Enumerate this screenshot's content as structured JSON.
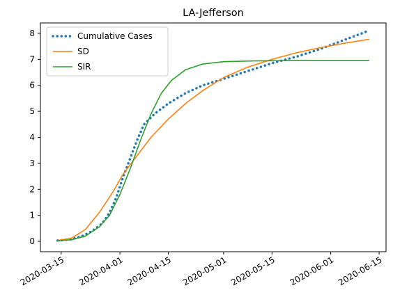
{
  "chart_data": {
    "type": "line",
    "title": "LA-Jefferson",
    "xlabel": "",
    "ylabel": "",
    "x_axis_kind": "date",
    "xlim": [
      "2020-03-09",
      "2020-06-17"
    ],
    "ylim": [
      -0.4,
      8.4
    ],
    "x_ticks": [
      "2020-03-15",
      "2020-04-01",
      "2020-04-15",
      "2020-05-01",
      "2020-05-15",
      "2020-06-01",
      "2020-06-15"
    ],
    "y_ticks": [
      0,
      1,
      2,
      3,
      4,
      5,
      6,
      7,
      8
    ],
    "grid": false,
    "legend_position": "top-left",
    "series": [
      {
        "name": "Cumulative Cases",
        "style": "dotted",
        "color": "#1f77b4",
        "points": [
          [
            "2020-03-14",
            0.03
          ],
          [
            "2020-03-18",
            0.08
          ],
          [
            "2020-03-21",
            0.2
          ],
          [
            "2020-03-24",
            0.4
          ],
          [
            "2020-03-27",
            0.7
          ],
          [
            "2020-03-29",
            1.1
          ],
          [
            "2020-03-31",
            1.7
          ],
          [
            "2020-04-02",
            2.5
          ],
          [
            "2020-04-04",
            3.2
          ],
          [
            "2020-04-06",
            3.9
          ],
          [
            "2020-04-08",
            4.5
          ],
          [
            "2020-04-11",
            4.9
          ],
          [
            "2020-04-15",
            5.3
          ],
          [
            "2020-04-20",
            5.7
          ],
          [
            "2020-04-25",
            6.0
          ],
          [
            "2020-05-01",
            6.25
          ],
          [
            "2020-05-08",
            6.55
          ],
          [
            "2020-05-15",
            6.85
          ],
          [
            "2020-05-22",
            7.1
          ],
          [
            "2020-05-29",
            7.4
          ],
          [
            "2020-06-05",
            7.75
          ],
          [
            "2020-06-12",
            8.1
          ]
        ]
      },
      {
        "name": "SD",
        "style": "solid",
        "color": "#ff7f0e",
        "points": [
          [
            "2020-03-14",
            0.03
          ],
          [
            "2020-03-18",
            0.12
          ],
          [
            "2020-03-22",
            0.45
          ],
          [
            "2020-03-26",
            1.1
          ],
          [
            "2020-03-30",
            1.9
          ],
          [
            "2020-04-02",
            2.6
          ],
          [
            "2020-04-06",
            3.3
          ],
          [
            "2020-04-10",
            4.0
          ],
          [
            "2020-04-15",
            4.7
          ],
          [
            "2020-04-20",
            5.3
          ],
          [
            "2020-04-25",
            5.8
          ],
          [
            "2020-05-01",
            6.3
          ],
          [
            "2020-05-08",
            6.7
          ],
          [
            "2020-05-15",
            7.0
          ],
          [
            "2020-05-22",
            7.25
          ],
          [
            "2020-05-29",
            7.45
          ],
          [
            "2020-06-05",
            7.62
          ],
          [
            "2020-06-12",
            7.77
          ]
        ]
      },
      {
        "name": "SIR",
        "style": "solid",
        "color": "#2ca02c",
        "points": [
          [
            "2020-03-14",
            0.02
          ],
          [
            "2020-03-18",
            0.06
          ],
          [
            "2020-03-22",
            0.2
          ],
          [
            "2020-03-26",
            0.55
          ],
          [
            "2020-03-29",
            1.0
          ],
          [
            "2020-04-01",
            1.8
          ],
          [
            "2020-04-04",
            2.8
          ],
          [
            "2020-04-07",
            3.9
          ],
          [
            "2020-04-10",
            4.9
          ],
          [
            "2020-04-13",
            5.7
          ],
          [
            "2020-04-16",
            6.2
          ],
          [
            "2020-04-20",
            6.6
          ],
          [
            "2020-04-25",
            6.82
          ],
          [
            "2020-05-01",
            6.91
          ],
          [
            "2020-05-10",
            6.94
          ],
          [
            "2020-05-20",
            6.95
          ],
          [
            "2020-06-01",
            6.95
          ],
          [
            "2020-06-12",
            6.95
          ]
        ]
      }
    ]
  }
}
